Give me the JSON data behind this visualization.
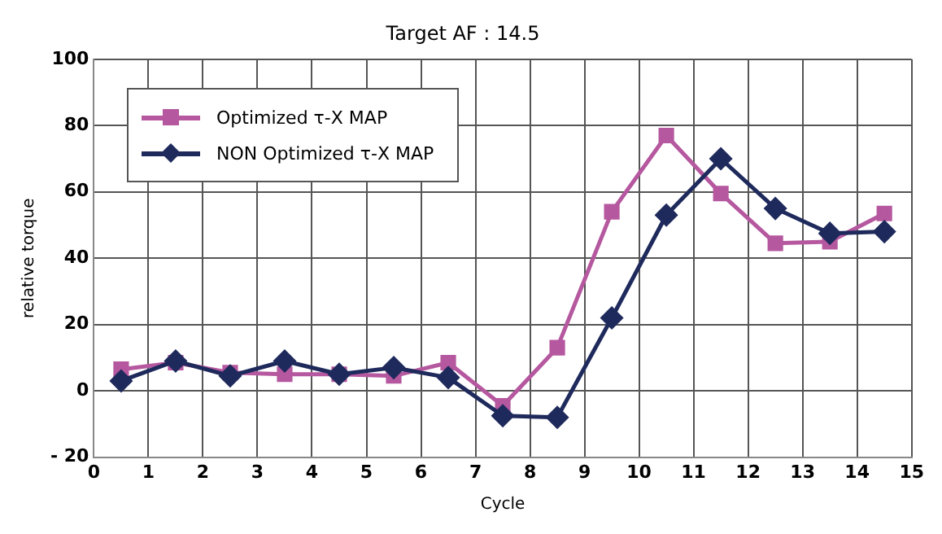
{
  "chart_data": {
    "type": "line",
    "title": "Target AF : 14.5",
    "xlabel": "Cycle",
    "ylabel": "relative torque",
    "x": [
      0.5,
      1.5,
      2.5,
      3.5,
      4.5,
      5.5,
      6.5,
      7.5,
      8.5,
      9.5,
      10.5,
      11.5,
      12.5,
      13.5,
      14.5
    ],
    "series": [
      {
        "name": "Optimized  τ-X MAP",
        "color": "#b5589f",
        "marker": "square",
        "values": [
          6.5,
          8.5,
          5.5,
          5,
          5,
          4.5,
          8.5,
          -4.5,
          13,
          54,
          77,
          59.5,
          44.5,
          45,
          53.5
        ]
      },
      {
        "name": "NON Optimized  τ-X MAP",
        "color": "#1f2a5c",
        "marker": "diamond",
        "values": [
          3,
          9,
          4.5,
          9,
          5,
          7,
          4,
          -7.5,
          -8,
          22,
          53,
          70,
          55,
          47.5,
          48
        ]
      }
    ],
    "xlim": [
      0,
      15
    ],
    "xticks": [
      0,
      1,
      2,
      3,
      4,
      5,
      6,
      7,
      8,
      9,
      10,
      11,
      12,
      13,
      14,
      15
    ],
    "ylim": [
      -20,
      100
    ],
    "yticks": [
      {
        "value": -20,
        "label": "- 20"
      },
      0,
      20,
      40,
      60,
      80,
      100
    ],
    "grid": true,
    "legend": "top left",
    "line_style": "solid"
  }
}
